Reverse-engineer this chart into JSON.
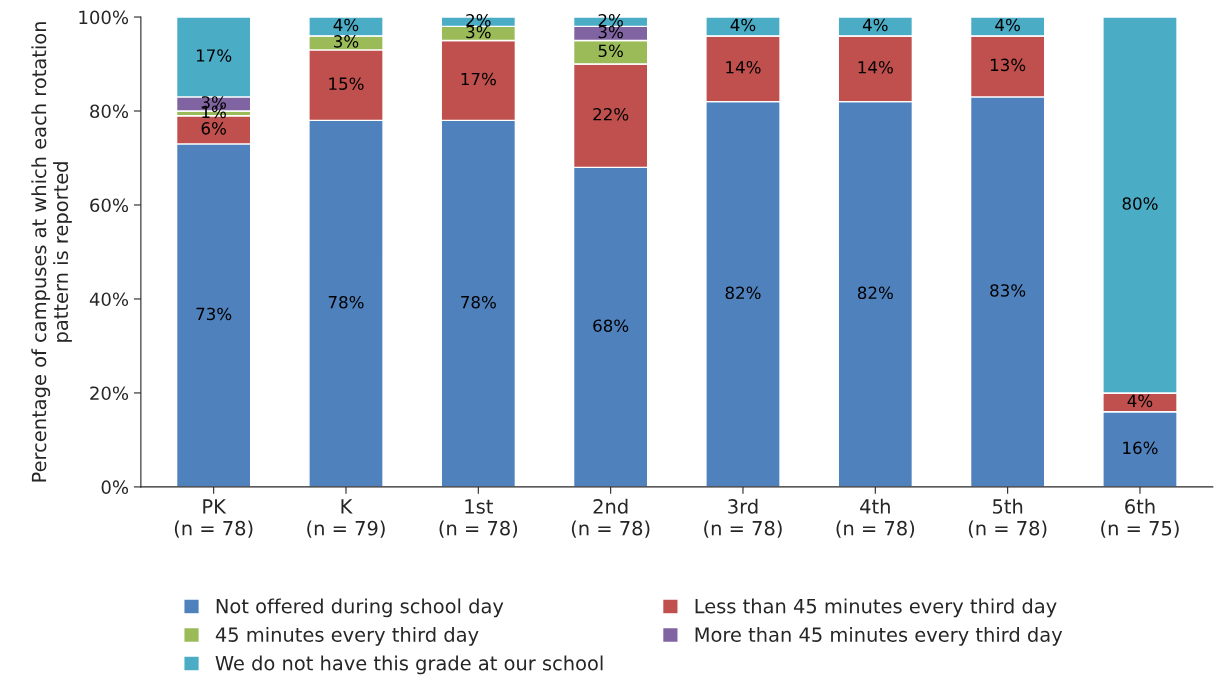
{
  "chart_data": {
    "type": "bar",
    "stacked": true,
    "ylabel": "Percentage of campuses at which each rotation pattern is reported",
    "categories": [
      "PK\n(n = 78)",
      "K\n(n = 79)",
      "1st\n(n = 78)",
      "2nd\n(n = 78)",
      "3rd\n(n = 78)",
      "4th\n(n = 78)",
      "5th\n(n = 78)",
      "6th\n(n = 75)"
    ],
    "series": [
      {
        "name": "Not offered during school day",
        "color": "#4f81bd",
        "values": [
          73,
          78,
          78,
          68,
          82,
          82,
          83,
          16
        ],
        "value_labels": [
          "73%",
          "78%",
          "78%",
          "68%",
          "82%",
          "82%",
          "83%",
          "16%"
        ]
      },
      {
        "name": "Less than 45 minutes every third day",
        "color": "#c0504d",
        "values": [
          6,
          15,
          17,
          22,
          14,
          14,
          13,
          4
        ],
        "value_labels": [
          "6%",
          "15%",
          "17%",
          "22%",
          "14%",
          "14%",
          "13%",
          "4%"
        ]
      },
      {
        "name": "45 minutes every third day",
        "color": "#9bbb59",
        "values": [
          1,
          3,
          3,
          5,
          0,
          0,
          0,
          0
        ],
        "value_labels": [
          "1%",
          "3%",
          "3%",
          "5%",
          null,
          null,
          null,
          null
        ]
      },
      {
        "name": "More than 45 minutes every third day",
        "color": "#8064a2",
        "values": [
          3,
          0,
          0,
          3,
          0,
          0,
          0,
          0
        ],
        "value_labels": [
          "3%",
          null,
          null,
          "3%",
          null,
          null,
          null,
          null
        ]
      },
      {
        "name": "We do not have this grade at our school",
        "color": "#4bacc6",
        "values": [
          17,
          4,
          2,
          2,
          4,
          4,
          4,
          80
        ],
        "value_labels": [
          "17%",
          "4%",
          "2%",
          "2%",
          "4%",
          "4%",
          "4%",
          "80%"
        ]
      }
    ],
    "ylim": [
      0,
      100
    ],
    "yticks": [
      {
        "value": 0,
        "label": "0%"
      },
      {
        "value": 20,
        "label": "20%"
      },
      {
        "value": 40,
        "label": "40%"
      },
      {
        "value": 60,
        "label": "60%"
      },
      {
        "value": 80,
        "label": "80%"
      },
      {
        "value": 100,
        "label": "100%"
      }
    ],
    "grid": false,
    "legend": "bottom"
  }
}
